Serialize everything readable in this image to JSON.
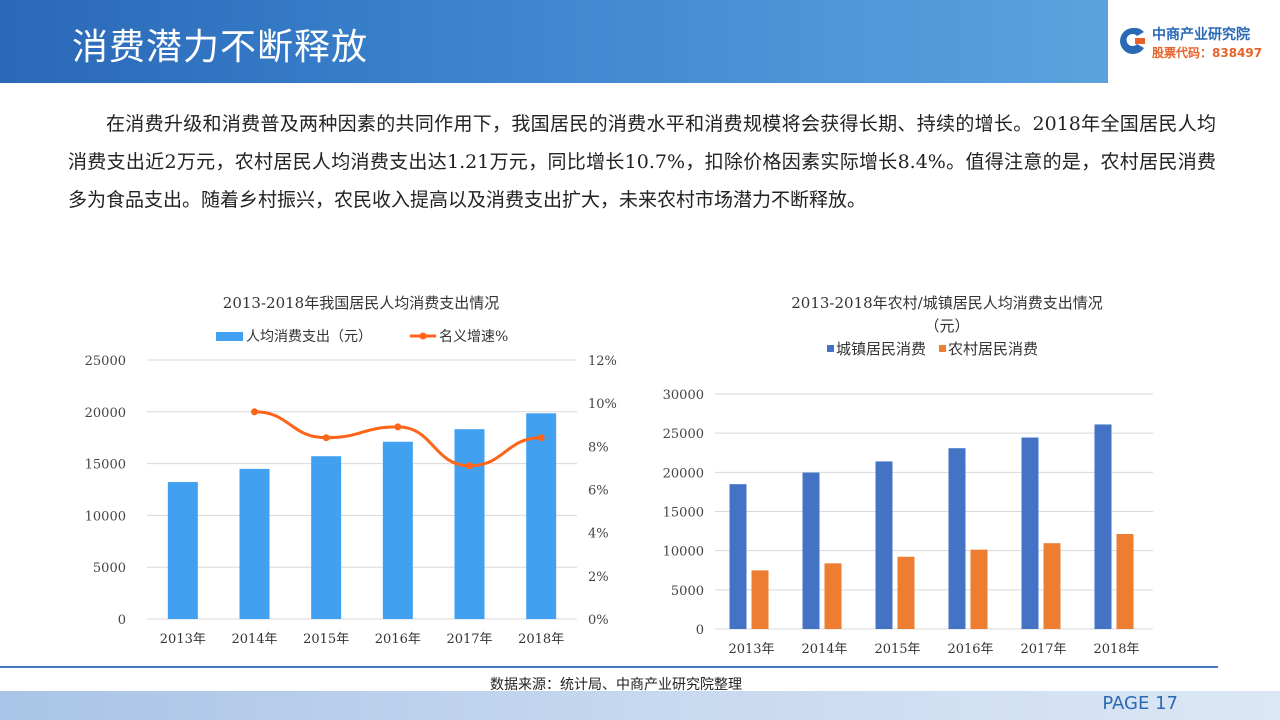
{
  "header": {
    "title": "消费潜力不断释放"
  },
  "logo": {
    "name": "中商产业研究院",
    "code": "股票代码：838497"
  },
  "paragraph": "在消费升级和消费普及两种因素的共同作用下，我国居民的消费水平和消费规模将会获得长期、持续的增长。2018年全国居民人均消费支出近2万元，农村居民人均消费支出达1.21万元，同比增长10.7%，扣除价格因素实际增长8.4%。值得注意的是，农村居民消费多为食品支出。随着乡村振兴，农民收入提高以及消费支出扩大，未来农村市场潜力不断释放。",
  "chart_data": [
    {
      "type": "bar+line",
      "title": "2013-2018年我国居民人均消费支出情况",
      "categories": [
        "2013年",
        "2014年",
        "2015年",
        "2016年",
        "2017年",
        "2018年"
      ],
      "series": [
        {
          "name": "人均消费支出（元）",
          "type": "bar",
          "axis": "left",
          "color": "#42a0f0",
          "values": [
            13220,
            14491,
            15712,
            17111,
            18322,
            19853
          ]
        },
        {
          "name": "名义增速%",
          "type": "line",
          "axis": "right",
          "color": "#ff6418",
          "values": [
            null,
            9.6,
            8.4,
            8.9,
            7.1,
            8.4
          ]
        }
      ],
      "ylim": [
        0,
        25000
      ],
      "yticks": [
        "0",
        "5000",
        "10000",
        "15000",
        "20000",
        "25000"
      ],
      "y2lim": [
        0,
        12
      ],
      "y2ticks": [
        "0%",
        "2%",
        "4%",
        "6%",
        "8%",
        "10%",
        "12%"
      ],
      "legend": "top",
      "grid": true
    },
    {
      "type": "bar",
      "title": "2013-2018年农村/城镇居民人均消费支出情况",
      "subtitle": "（元）",
      "categories": [
        "2013年",
        "2014年",
        "2015年",
        "2016年",
        "2017年",
        "2018年"
      ],
      "series": [
        {
          "name": "城镇居民消费",
          "color": "#4472c4",
          "values": [
            18488,
            19968,
            21392,
            23079,
            24445,
            26112
          ]
        },
        {
          "name": "农村居民消费",
          "color": "#ed7d31",
          "values": [
            7485,
            8383,
            9223,
            10130,
            10955,
            12124
          ]
        }
      ],
      "ylim": [
        0,
        30000
      ],
      "yticks": [
        "0",
        "5000",
        "10000",
        "15000",
        "20000",
        "25000",
        "30000"
      ],
      "legend": "top",
      "grid": true
    }
  ],
  "footer": {
    "source": "数据来源：统计局、中商产业研究院整理",
    "page": "PAGE 17"
  }
}
